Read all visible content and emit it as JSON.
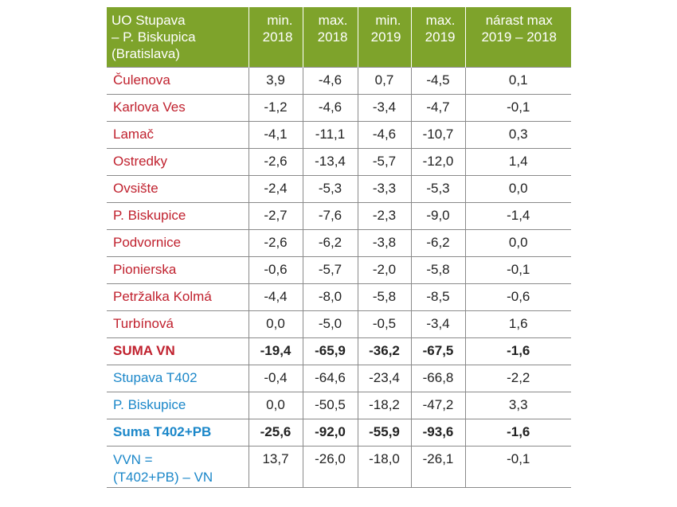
{
  "table": {
    "headers": [
      "UO Stupava\n– P. Biskupica\n(Bratislava)",
      "min.\n2018",
      "max.\n2018",
      "min.\n2019",
      "max.\n2019",
      "nárast max\n2019 – 2018"
    ],
    "rows": [
      {
        "name": "Čulenova",
        "values": [
          "3,9",
          "-4,6",
          "0,7",
          "-4,5",
          "0,1"
        ],
        "color": "red",
        "bold": false
      },
      {
        "name": "Karlova Ves",
        "values": [
          "-1,2",
          "-4,6",
          "-3,4",
          "-4,7",
          "-0,1"
        ],
        "color": "red",
        "bold": false
      },
      {
        "name": "Lamač",
        "values": [
          "-4,1",
          "-11,1",
          "-4,6",
          "-10,7",
          "0,3"
        ],
        "color": "red",
        "bold": false
      },
      {
        "name": "Ostredky",
        "values": [
          "-2,6",
          "-13,4",
          "-5,7",
          "-12,0",
          "1,4"
        ],
        "color": "red",
        "bold": false
      },
      {
        "name": "Ovsište",
        "values": [
          "-2,4",
          "-5,3",
          "-3,3",
          "-5,3",
          "0,0"
        ],
        "color": "red",
        "bold": false
      },
      {
        "name": "P. Biskupice",
        "values": [
          "-2,7",
          "-7,6",
          "-2,3",
          "-9,0",
          "-1,4"
        ],
        "color": "red",
        "bold": false
      },
      {
        "name": "Podvornice",
        "values": [
          "-2,6",
          "-6,2",
          "-3,8",
          "-6,2",
          "0,0"
        ],
        "color": "red",
        "bold": false
      },
      {
        "name": "Pionierska",
        "values": [
          "-0,6",
          "-5,7",
          "-2,0",
          "-5,8",
          "-0,1"
        ],
        "color": "red",
        "bold": false
      },
      {
        "name": "Petržalka Kolmá",
        "values": [
          "-4,4",
          "-8,0",
          "-5,8",
          "-8,5",
          "-0,6"
        ],
        "color": "red",
        "bold": false
      },
      {
        "name": "Turbínová",
        "values": [
          "0,0",
          "-5,0",
          "-0,5",
          "-3,4",
          "1,6"
        ],
        "color": "red",
        "bold": false
      },
      {
        "name": "SUMA VN",
        "values": [
          "-19,4",
          "-65,9",
          "-36,2",
          "-67,5",
          "-1,6"
        ],
        "color": "red",
        "bold": true
      },
      {
        "name": "Stupava T402",
        "values": [
          "-0,4",
          "-64,6",
          "-23,4",
          "-66,8",
          "-2,2"
        ],
        "color": "blue",
        "bold": false
      },
      {
        "name": "P. Biskupice",
        "values": [
          "0,0",
          "-50,5",
          "-18,2",
          "-47,2",
          "3,3"
        ],
        "color": "blue",
        "bold": false
      },
      {
        "name": "Suma T402+PB",
        "values": [
          "-25,6",
          "-92,0",
          "-55,9",
          "-93,6",
          "-1,6"
        ],
        "color": "blue",
        "bold": true
      },
      {
        "name": "VVN =\n(T402+PB) – VN",
        "values": [
          "13,7",
          "-26,0",
          "-18,0",
          "-26,1",
          "-0,1"
        ],
        "color": "blue",
        "bold": false
      }
    ]
  },
  "colors": {
    "header_bg": "#7ea32b",
    "red": "#c0212e",
    "blue": "#1b87c9"
  }
}
